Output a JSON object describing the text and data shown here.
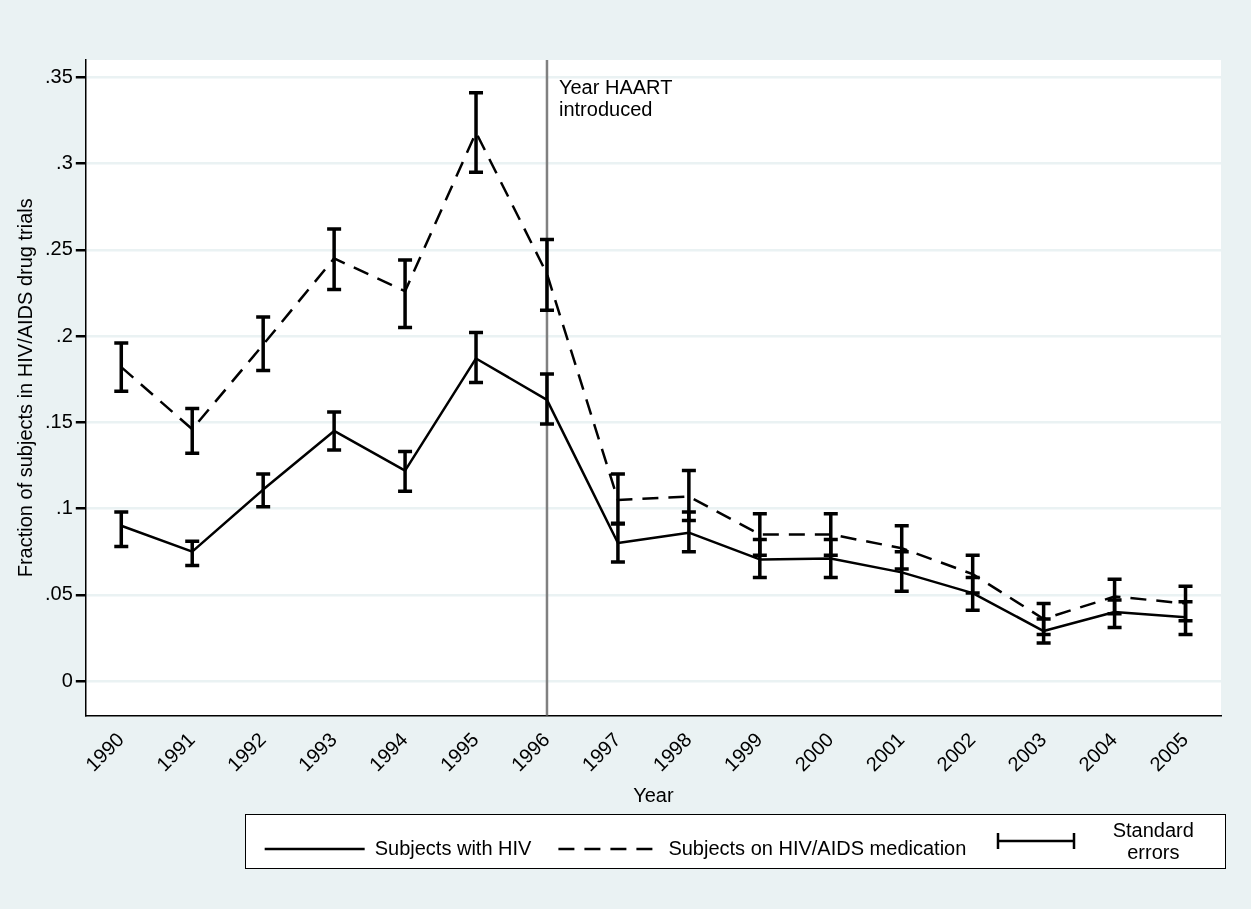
{
  "chart_data": {
    "type": "line",
    "xlabel": "Year",
    "ylabel": "Fraction of subjects in HIV/AIDS drug trials",
    "categories": [
      "1990",
      "1991",
      "1992",
      "1993",
      "1994",
      "1995",
      "1996",
      "1997",
      "1998",
      "1999",
      "2000",
      "2001",
      "2002",
      "2003",
      "2004",
      "2005"
    ],
    "series": [
      {
        "name": "Subjects with HIV",
        "color": "#000000",
        "line_style": "solid",
        "values": [
          0.09,
          0.075,
          0.111,
          0.145,
          0.122,
          0.187,
          0.163,
          0.08,
          0.086,
          0.0705,
          0.071,
          0.063,
          0.051,
          0.029,
          0.04,
          0.037
        ],
        "errors": [
          [
            0.078,
            0.098
          ],
          [
            0.067,
            0.081
          ],
          [
            0.101,
            0.12
          ],
          [
            0.134,
            0.156
          ],
          [
            0.11,
            0.133
          ],
          [
            0.173,
            0.202
          ],
          [
            0.149,
            0.178
          ],
          [
            0.069,
            0.0915
          ],
          [
            0.075,
            0.098
          ],
          [
            0.06,
            0.082
          ],
          [
            0.06,
            0.082
          ],
          [
            0.052,
            0.075
          ],
          [
            0.041,
            0.06
          ],
          [
            0.022,
            0.036
          ],
          [
            0.031,
            0.047
          ],
          [
            0.027,
            0.046
          ]
        ]
      },
      {
        "name": "Subjects on HIV/AIDS medication",
        "color": "#000000",
        "line_style": "dashed",
        "values": [
          0.182,
          0.146,
          0.195,
          0.245,
          0.226,
          0.318,
          0.236,
          0.105,
          0.107,
          0.085,
          0.085,
          0.077,
          0.062,
          0.036,
          0.049,
          0.045
        ],
        "errors": [
          [
            0.168,
            0.196
          ],
          [
            0.132,
            0.158
          ],
          [
            0.18,
            0.211
          ],
          [
            0.227,
            0.262
          ],
          [
            0.205,
            0.244
          ],
          [
            0.295,
            0.341
          ],
          [
            0.215,
            0.256
          ],
          [
            0.091,
            0.12
          ],
          [
            0.093,
            0.122
          ],
          [
            0.073,
            0.097
          ],
          [
            0.073,
            0.097
          ],
          [
            0.065,
            0.09
          ],
          [
            0.051,
            0.073
          ],
          [
            0.027,
            0.045
          ],
          [
            0.039,
            0.059
          ],
          [
            0.035,
            0.055
          ]
        ]
      }
    ],
    "ylim": [
      -0.02,
      0.36
    ],
    "yticks": [
      0,
      {
        "value": 0.05,
        "label": ".05"
      },
      {
        "value": 0.1,
        "label": ".1"
      },
      {
        "value": 0.15,
        "label": ".15"
      },
      {
        "value": 0.2,
        "label": ".2"
      },
      {
        "value": 0.25,
        "label": ".25"
      },
      {
        "value": 0.3,
        "label": ".3"
      },
      {
        "value": 0.35,
        "label": ".35"
      }
    ],
    "ref_lines": [
      {
        "axis": "x",
        "value": "1996",
        "label": "Year HAART\nintroduced",
        "color": "#808080"
      }
    ],
    "annotations": [
      "Standard errors"
    ],
    "grid": "y",
    "legend": "bottom",
    "marker": "none"
  }
}
